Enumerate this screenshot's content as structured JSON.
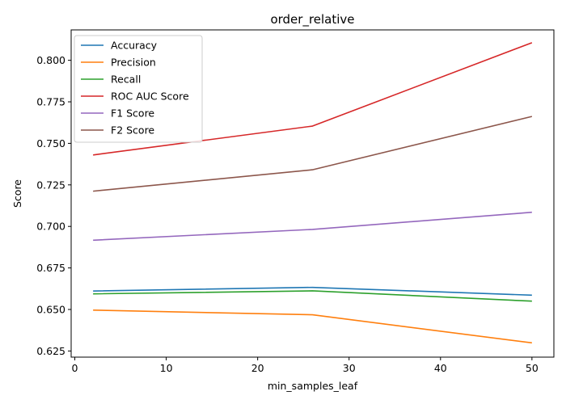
{
  "chart_data": {
    "type": "line",
    "title": "order_relative",
    "xlabel": "min_samples_leaf",
    "ylabel": "Score",
    "x": [
      2,
      26,
      50
    ],
    "xlim": [
      -0.4,
      52.4
    ],
    "ylim": [
      0.6213,
      0.8183
    ],
    "xticks": [
      0,
      10,
      20,
      30,
      40,
      50
    ],
    "xtick_labels": [
      "0",
      "10",
      "20",
      "30",
      "40",
      "50"
    ],
    "yticks": [
      0.625,
      0.65,
      0.675,
      0.7,
      0.725,
      0.75,
      0.775,
      0.8
    ],
    "ytick_labels": [
      "0.625",
      "0.650",
      "0.675",
      "0.700",
      "0.725",
      "0.750",
      "0.775",
      "0.800"
    ],
    "grid": false,
    "legend_position": "top-left",
    "series": [
      {
        "name": "Accuracy",
        "color": "#1f77b4",
        "values": [
          0.6611,
          0.6633,
          0.6586
        ]
      },
      {
        "name": "Precision",
        "color": "#ff7f0e",
        "values": [
          0.6496,
          0.6468,
          0.6299
        ]
      },
      {
        "name": "Recall",
        "color": "#2ca02c",
        "values": [
          0.6594,
          0.6612,
          0.655
        ]
      },
      {
        "name": "ROC AUC Score",
        "color": "#d62728",
        "values": [
          0.743,
          0.7604,
          0.8106
        ]
      },
      {
        "name": "F1 Score",
        "color": "#9467bd",
        "values": [
          0.6917,
          0.6982,
          0.7085
        ]
      },
      {
        "name": "F2 Score",
        "color": "#8c564b",
        "values": [
          0.7212,
          0.7341,
          0.7662
        ]
      }
    ]
  }
}
